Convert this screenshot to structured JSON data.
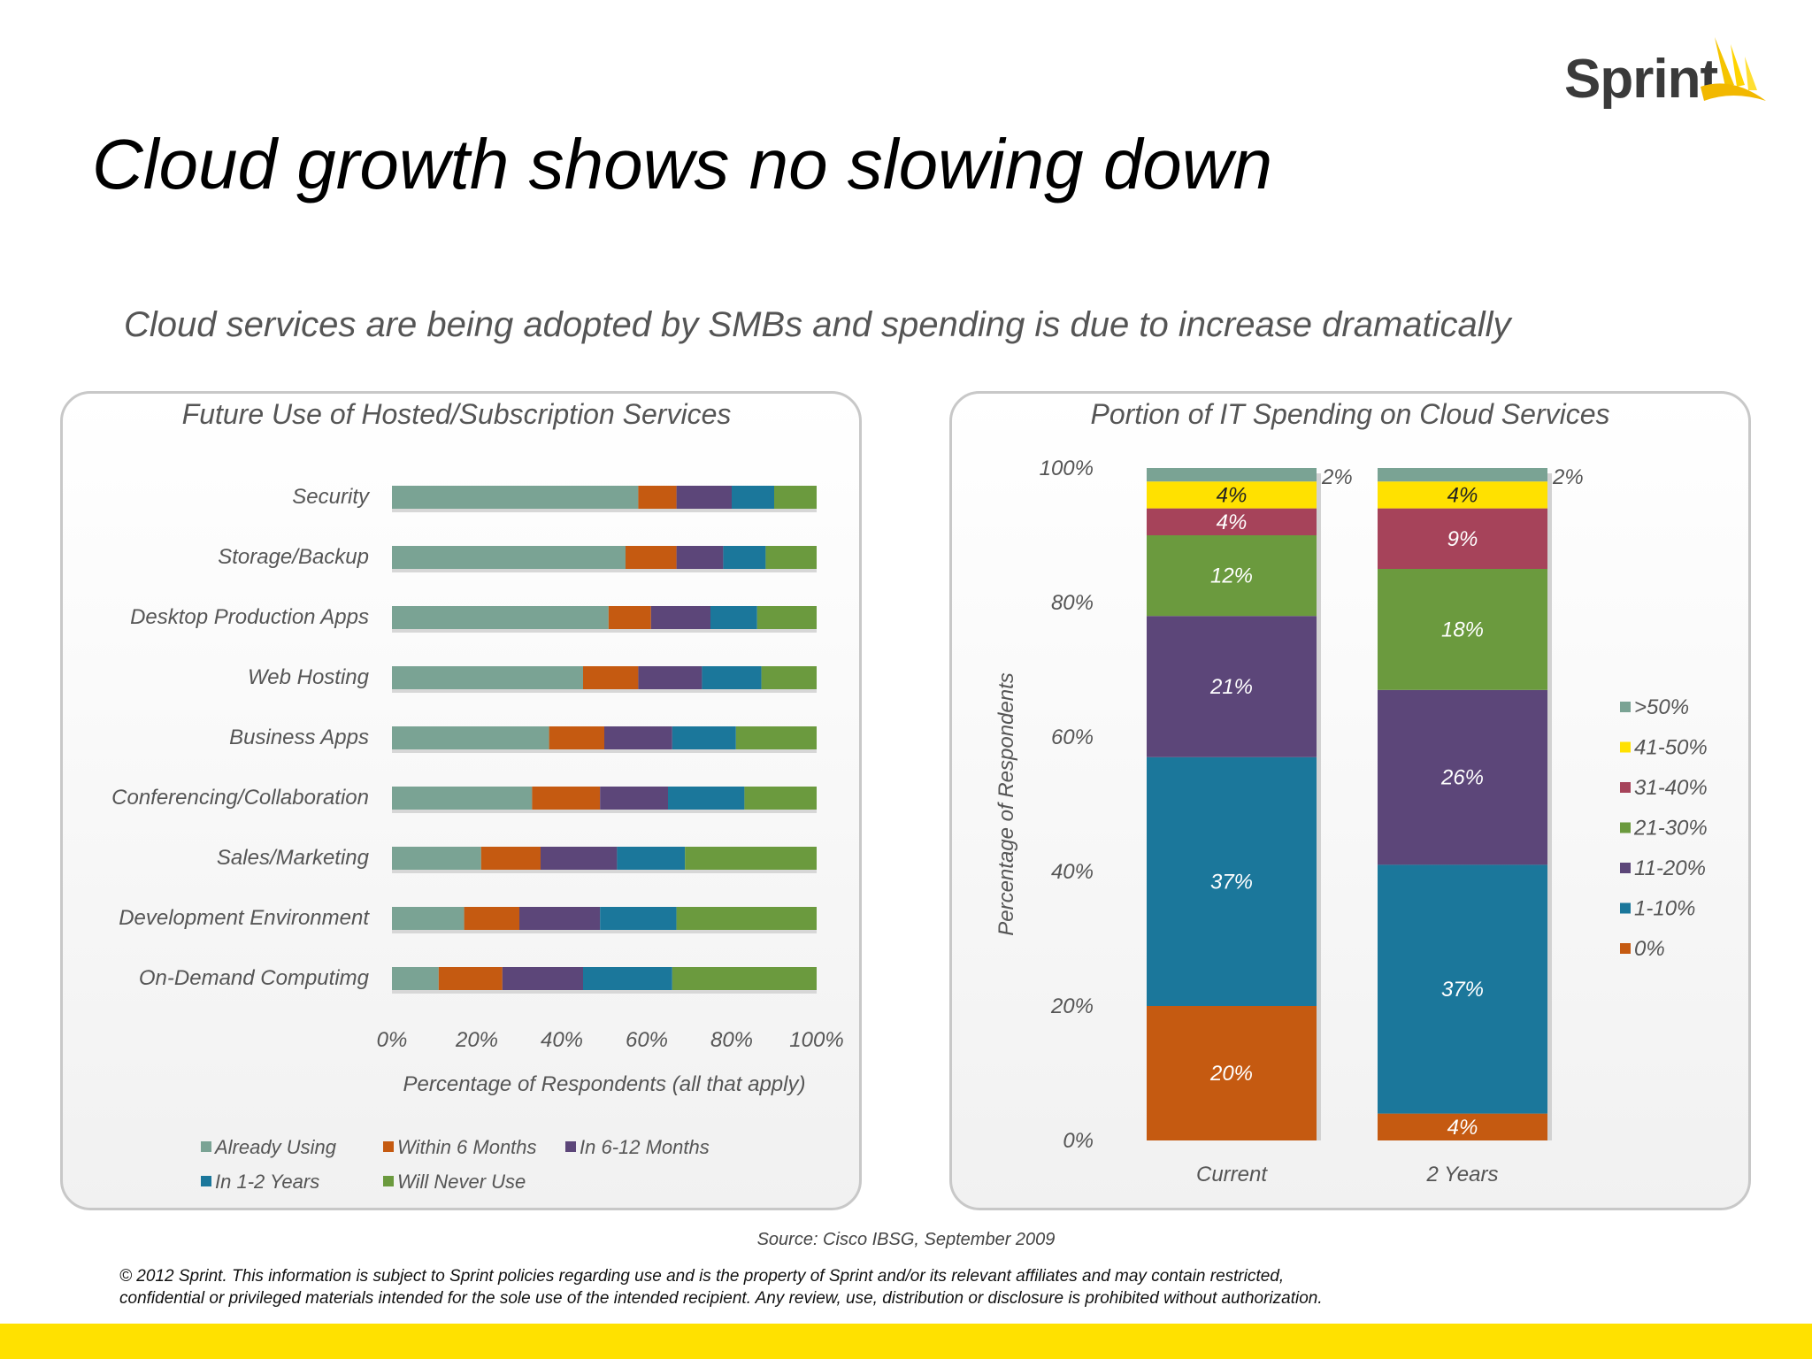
{
  "brand": {
    "name": "Sprint",
    "accent": "#ffe100"
  },
  "title": "Cloud growth shows no slowing down",
  "subtitle": "Cloud services are being adopted by SMBs and spending is due to increase dramatically",
  "source": "Source: Cisco IBSG, September 2009",
  "copyright_line1": "© 2012 Sprint. This information is subject to Sprint policies regarding use and is the property of Sprint and/or its relevant affiliates and may contain restricted,",
  "copyright_line2": "confidential or privileged materials intended for the sole use of the intended recipient. Any review, use, distribution or disclosure is prohibited without authorization.",
  "chart_data": [
    {
      "type": "bar",
      "orientation": "horizontal",
      "stacked": true,
      "title": "Future Use of Hosted/Subscription Services",
      "xlabel": "Percentage of Respondents (all that apply)",
      "xlim": [
        0,
        100
      ],
      "x_ticks": [
        "0%",
        "20%",
        "40%",
        "60%",
        "80%",
        "100%"
      ],
      "legend_position": "bottom",
      "categories": [
        "Security",
        "Storage/Backup",
        "Desktop Production Apps",
        "Web Hosting",
        "Business Apps",
        "Conferencing/Collaboration",
        "Sales/Marketing",
        "Development Environment",
        "On-Demand Computimg"
      ],
      "series": [
        {
          "name": "Already Using",
          "color": "#7aa394",
          "values": [
            58,
            55,
            51,
            45,
            37,
            33,
            21,
            17,
            11
          ]
        },
        {
          "name": "Within 6 Months",
          "color": "#c55a11",
          "values": [
            9,
            12,
            10,
            13,
            13,
            16,
            14,
            13,
            15
          ]
        },
        {
          "name": "In 6-12 Months",
          "color": "#5c4679",
          "values": [
            13,
            11,
            14,
            15,
            16,
            16,
            18,
            19,
            19
          ]
        },
        {
          "name": "In 1-2 Years",
          "color": "#1b779b",
          "values": [
            10,
            10,
            11,
            14,
            15,
            18,
            16,
            18,
            21
          ]
        },
        {
          "name": "Will Never Use",
          "color": "#6b9a3e",
          "values": [
            10,
            12,
            14,
            13,
            19,
            17,
            31,
            33,
            34
          ]
        }
      ]
    },
    {
      "type": "bar",
      "orientation": "vertical",
      "stacked": true,
      "title": "Portion of IT Spending on Cloud Services",
      "ylabel": "Percentage of Respondents",
      "ylim": [
        0,
        100
      ],
      "y_ticks": [
        "0%",
        "20%",
        "40%",
        "60%",
        "80%",
        "100%"
      ],
      "legend_position": "right",
      "categories": [
        "Current",
        "2 Years"
      ],
      "series": [
        {
          "name": "0%",
          "color": "#c55a11",
          "values": [
            20,
            4
          ],
          "labels": [
            "20%",
            "4%"
          ]
        },
        {
          "name": "1-10%",
          "color": "#1b779b",
          "values": [
            37,
            37
          ],
          "labels": [
            "37%",
            "37%"
          ]
        },
        {
          "name": "11-20%",
          "color": "#5c4679",
          "values": [
            21,
            26
          ],
          "labels": [
            "21%",
            "26%"
          ]
        },
        {
          "name": "21-30%",
          "color": "#6b9a3e",
          "values": [
            12,
            18
          ],
          "labels": [
            "12%",
            "18%"
          ]
        },
        {
          "name": "31-40%",
          "color": "#a6435a",
          "values": [
            4,
            9
          ],
          "labels": [
            "4%",
            "9%"
          ]
        },
        {
          "name": "41-50%",
          "color": "#ffe100",
          "values": [
            4,
            4
          ],
          "labels": [
            "4%",
            "4%"
          ]
        },
        {
          "name": ">50%",
          "color": "#7aa394",
          "values": [
            2,
            2
          ],
          "labels": [
            "2%",
            "2%"
          ]
        }
      ]
    }
  ]
}
